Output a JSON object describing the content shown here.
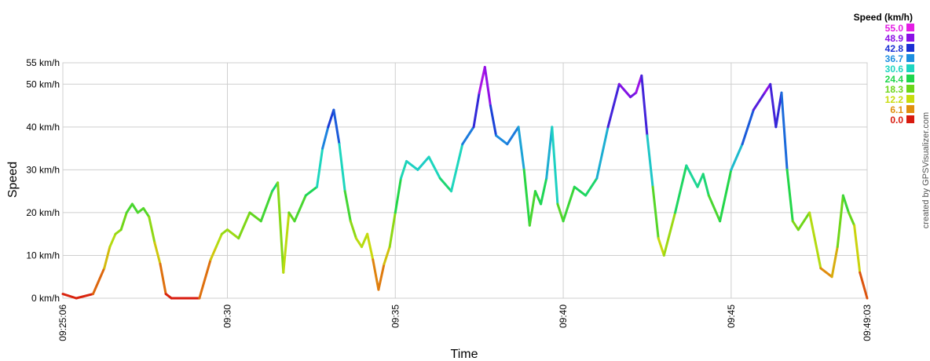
{
  "chart_data": {
    "type": "line",
    "xlabel": "Time",
    "ylabel": "Speed",
    "x_start": "09:25:06",
    "x_end": "09:49:03",
    "x_ticks": [
      "09:25:06",
      "09:30",
      "09:35",
      "09:40",
      "09:45",
      "09:49:03"
    ],
    "y_ticks": [
      "0 km/h",
      "10 km/h",
      "20 km/h",
      "30 km/h",
      "40 km/h",
      "50 km/h",
      "55 km/h"
    ],
    "ylim": [
      0,
      55
    ],
    "y_unit": "km/h",
    "grid": true,
    "legend": {
      "title": "Speed (km/h)",
      "placement": "top-right",
      "entries": [
        {
          "label": "55.0",
          "color": "#e41ce4"
        },
        {
          "label": "48.9",
          "color": "#8a10e6"
        },
        {
          "label": "42.8",
          "color": "#1b2fd4"
        },
        {
          "label": "36.7",
          "color": "#1c8fe0"
        },
        {
          "label": "30.6",
          "color": "#1ed6c0"
        },
        {
          "label": "24.4",
          "color": "#1ed64c"
        },
        {
          "label": "18.3",
          "color": "#6bd61a"
        },
        {
          "label": "12.2",
          "color": "#c8dc0e"
        },
        {
          "label": "6.1",
          "color": "#e08f0e"
        },
        {
          "label": "0.0",
          "color": "#d81a0e"
        }
      ]
    },
    "credit": "created by GPSVisualizer.com",
    "series": [
      {
        "x": [
          "09:25:06",
          "09:25:30",
          "09:26:00",
          "09:26:20",
          "09:26:30",
          "09:26:40",
          "09:26:50",
          "09:27:00",
          "09:27:10",
          "09:27:20",
          "09:27:30",
          "09:27:40",
          "09:27:50",
          "09:28:00",
          "09:28:10",
          "09:28:20",
          "09:28:30",
          "09:28:50",
          "09:29:10",
          "09:29:30",
          "09:29:40",
          "09:29:50",
          "09:30:00",
          "09:30:20",
          "09:30:40",
          "09:31:00",
          "09:31:20",
          "09:31:30",
          "09:31:40",
          "09:31:50",
          "09:32:00",
          "09:32:20",
          "09:32:40",
          "09:32:50",
          "09:33:00",
          "09:33:10",
          "09:33:20",
          "09:33:30",
          "09:33:40",
          "09:33:50",
          "09:34:00",
          "09:34:10",
          "09:34:20",
          "09:34:30",
          "09:34:40",
          "09:34:50",
          "09:35:00",
          "09:35:10",
          "09:35:20",
          "09:35:40",
          "09:36:00",
          "09:36:20",
          "09:36:40",
          "09:37:00",
          "09:37:20",
          "09:37:30",
          "09:37:40",
          "09:37:50",
          "09:38:00",
          "09:38:20",
          "09:38:40",
          "09:38:50",
          "09:39:00",
          "09:39:10",
          "09:39:20",
          "09:39:30",
          "09:39:40",
          "09:39:50",
          "09:40:00",
          "09:40:20",
          "09:40:40",
          "09:41:00",
          "09:41:20",
          "09:41:40",
          "09:42:00",
          "09:42:10",
          "09:42:20",
          "09:42:30",
          "09:42:40",
          "09:42:50",
          "09:43:00",
          "09:43:20",
          "09:43:40",
          "09:44:00",
          "09:44:10",
          "09:44:20",
          "09:44:40",
          "09:45:00",
          "09:45:20",
          "09:45:40",
          "09:46:00",
          "09:46:10",
          "09:46:20",
          "09:46:30",
          "09:46:40",
          "09:46:50",
          "09:47:00",
          "09:47:20",
          "09:47:40",
          "09:48:00",
          "09:48:10",
          "09:48:20",
          "09:48:30",
          "09:48:40",
          "09:48:50",
          "09:49:03"
        ],
        "y": [
          1,
          0,
          1,
          7,
          12,
          15,
          16,
          20,
          22,
          20,
          21,
          19,
          13,
          8,
          1,
          0,
          0,
          0,
          0,
          9,
          12,
          15,
          16,
          14,
          20,
          18,
          25,
          27,
          6,
          20,
          18,
          24,
          26,
          35,
          40,
          44,
          36,
          25,
          18,
          14,
          12,
          15,
          9,
          2,
          8,
          12,
          20,
          28,
          32,
          30,
          33,
          28,
          25,
          36,
          40,
          48,
          54,
          45,
          38,
          36,
          40,
          30,
          17,
          25,
          22,
          28,
          40,
          22,
          18,
          26,
          24,
          28,
          40,
          50,
          47,
          48,
          52,
          38,
          26,
          14,
          10,
          20,
          31,
          26,
          29,
          24,
          18,
          30,
          36,
          44,
          48,
          50,
          40,
          48,
          30,
          18,
          16,
          20,
          7,
          5,
          12,
          24,
          20,
          17,
          6,
          0
        ]
      }
    ]
  }
}
